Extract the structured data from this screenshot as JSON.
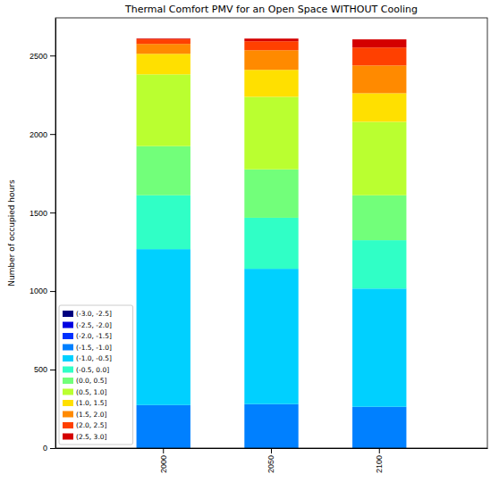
{
  "chart_data": {
    "type": "bar",
    "title": "Thermal Comfort PMV for an Open Space WITHOUT Cooling",
    "y_label": "Number of occupied hours",
    "categories": [
      "2000",
      "2050",
      "2100"
    ],
    "stacked": true,
    "legend": "lower left",
    "grid": false,
    "ylim": [
      0,
      2740
    ],
    "yticks": [
      0,
      500,
      1000,
      1500,
      2000,
      2500
    ],
    "series": [
      {
        "name": "(-3.0, -2.5]",
        "color": "#00007f",
        "values": [
          0,
          0,
          0
        ]
      },
      {
        "name": "(-2.5, -2.0]",
        "color": "#0000e1",
        "values": [
          0,
          0,
          0
        ]
      },
      {
        "name": "(-2.0, -1.5]",
        "color": "#0030ff",
        "values": [
          0,
          0,
          0
        ]
      },
      {
        "name": "(-1.5, -1.0]",
        "color": "#0080ff",
        "values": [
          274,
          280,
          263
        ]
      },
      {
        "name": "(-1.0, -0.5]",
        "color": "#00d0ff",
        "values": [
          993,
          862,
          753
        ]
      },
      {
        "name": "(-0.5, 0.0]",
        "color": "#30ffc6",
        "values": [
          343,
          325,
          308
        ]
      },
      {
        "name": "(0.0, 0.5]",
        "color": "#72ff7a",
        "values": [
          313,
          308,
          286
        ]
      },
      {
        "name": "(0.5, 1.0]",
        "color": "#baff30",
        "values": [
          457,
          462,
          468
        ]
      },
      {
        "name": "(1.0, 1.5]",
        "color": "#ffe000",
        "values": [
          131,
          172,
          182
        ]
      },
      {
        "name": "(1.5, 2.0]",
        "color": "#ff8a00",
        "values": [
          63,
          125,
          177
        ]
      },
      {
        "name": "(2.0, 2.5]",
        "color": "#ff4000",
        "values": [
          29,
          57,
          114
        ]
      },
      {
        "name": "(2.5, 3.0]",
        "color": "#d40000",
        "values": [
          5,
          17,
          52
        ]
      }
    ]
  }
}
